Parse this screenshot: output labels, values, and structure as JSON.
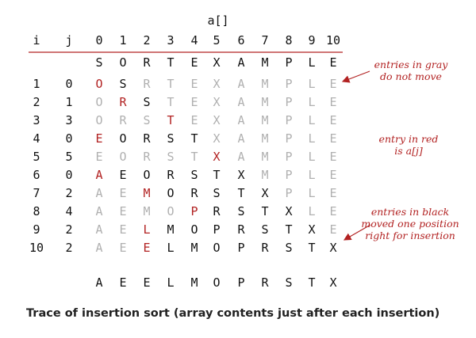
{
  "header": {
    "array_label": "a[]",
    "col_i": "i",
    "col_j": "j",
    "indices": [
      "0",
      "1",
      "2",
      "3",
      "4",
      "5",
      "6",
      "7",
      "8",
      "9",
      "10"
    ]
  },
  "initial": [
    "S",
    "O",
    "R",
    "T",
    "E",
    "X",
    "A",
    "M",
    "P",
    "L",
    "E"
  ],
  "rows": [
    {
      "i": "1",
      "j": "0",
      "cells": [
        "O",
        "S",
        "R",
        "T",
        "E",
        "X",
        "A",
        "M",
        "P",
        "L",
        "E"
      ],
      "red": 0,
      "black_from": 1,
      "black_to": 1
    },
    {
      "i": "2",
      "j": "1",
      "cells": [
        "O",
        "R",
        "S",
        "T",
        "E",
        "X",
        "A",
        "M",
        "P",
        "L",
        "E"
      ],
      "red": 1,
      "black_from": 2,
      "black_to": 2
    },
    {
      "i": "3",
      "j": "3",
      "cells": [
        "O",
        "R",
        "S",
        "T",
        "E",
        "X",
        "A",
        "M",
        "P",
        "L",
        "E"
      ],
      "red": 3,
      "black_from": 4,
      "black_to": 3
    },
    {
      "i": "4",
      "j": "0",
      "cells": [
        "E",
        "O",
        "R",
        "S",
        "T",
        "X",
        "A",
        "M",
        "P",
        "L",
        "E"
      ],
      "red": 0,
      "black_from": 1,
      "black_to": 4
    },
    {
      "i": "5",
      "j": "5",
      "cells": [
        "E",
        "O",
        "R",
        "S",
        "T",
        "X",
        "A",
        "M",
        "P",
        "L",
        "E"
      ],
      "red": 5,
      "black_from": 6,
      "black_to": 5
    },
    {
      "i": "6",
      "j": "0",
      "cells": [
        "A",
        "E",
        "O",
        "R",
        "S",
        "T",
        "X",
        "M",
        "P",
        "L",
        "E"
      ],
      "red": 0,
      "black_from": 1,
      "black_to": 6
    },
    {
      "i": "7",
      "j": "2",
      "cells": [
        "A",
        "E",
        "M",
        "O",
        "R",
        "S",
        "T",
        "X",
        "P",
        "L",
        "E"
      ],
      "red": 2,
      "black_from": 3,
      "black_to": 7
    },
    {
      "i": "8",
      "j": "4",
      "cells": [
        "A",
        "E",
        "M",
        "O",
        "P",
        "R",
        "S",
        "T",
        "X",
        "L",
        "E"
      ],
      "red": 4,
      "black_from": 5,
      "black_to": 8
    },
    {
      "i": "9",
      "j": "2",
      "cells": [
        "A",
        "E",
        "L",
        "M",
        "O",
        "P",
        "R",
        "S",
        "T",
        "X",
        "E"
      ],
      "red": 2,
      "black_from": 3,
      "black_to": 9
    },
    {
      "i": "10",
      "j": "2",
      "cells": [
        "A",
        "E",
        "E",
        "L",
        "M",
        "O",
        "P",
        "R",
        "S",
        "T",
        "X"
      ],
      "red": 2,
      "black_from": 3,
      "black_to": 10
    }
  ],
  "final": [
    "A",
    "E",
    "E",
    "L",
    "M",
    "O",
    "P",
    "R",
    "S",
    "T",
    "X"
  ],
  "annotations": {
    "gray": [
      "entries in gray",
      "do not move"
    ],
    "red": [
      "entry in red",
      "is a[j]"
    ],
    "black": [
      "entries in black",
      "moved one position",
      "right for insertion"
    ]
  },
  "caption": "Trace of insertion sort (array contents just after each insertion)",
  "colors": {
    "black": "#111111",
    "gray": "#b0b0b0",
    "red": "#b22222",
    "rule": "#b22222",
    "annotation": "#b22222"
  }
}
